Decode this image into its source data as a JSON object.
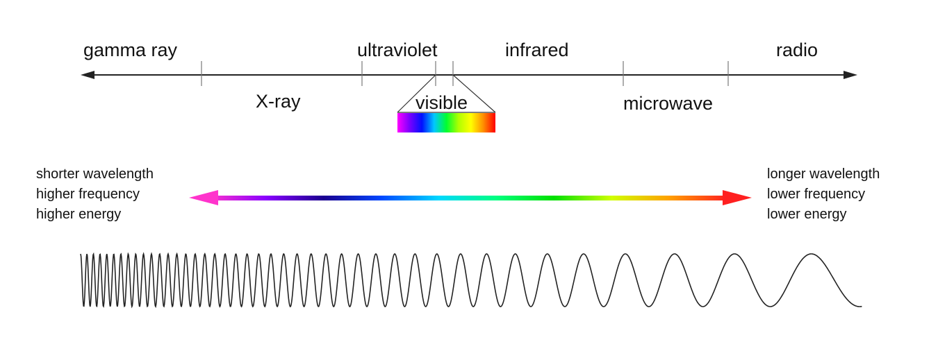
{
  "spectrum": {
    "upper_labels": [
      "gamma ray",
      "ultraviolet",
      "infrared",
      "radio"
    ],
    "lower_labels": [
      "X-ray",
      "microwave"
    ],
    "visible_label": "visible",
    "visible_colors": [
      "#ff00ff",
      "#7a00ff",
      "#0010ff",
      "#00c8ff",
      "#00ff30",
      "#b0ff00",
      "#ffff00",
      "#ff9000",
      "#ff0000"
    ]
  },
  "left_text": [
    "shorter wavelength",
    "higher frequency",
    "higher energy"
  ],
  "right_text": [
    "longer wavelength",
    "lower frequency",
    "lower energy"
  ],
  "gradient_colors": [
    "#ff33cc",
    "#8a00ff",
    "#1a0090",
    "#0047ff",
    "#00d8ff",
    "#00ff80",
    "#00e000",
    "#d0ff00",
    "#ffa000",
    "#ff2020"
  ],
  "wave_description": {
    "wavelength_trend": "increasing left to right"
  }
}
